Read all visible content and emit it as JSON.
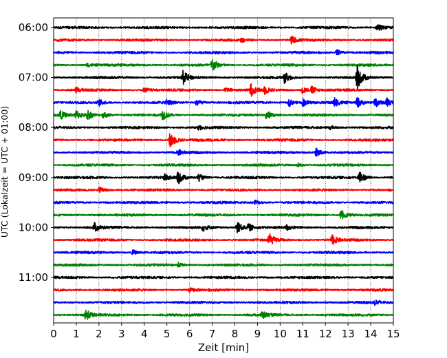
{
  "chart_data": {
    "type": "line",
    "title": "",
    "xlabel": "Zeit  [min]",
    "ylabel": "UTC (Lokalzeit = UTC + 01:00)",
    "xlim": [
      0,
      15
    ],
    "x_ticks": [
      0,
      1,
      2,
      3,
      4,
      5,
      6,
      7,
      8,
      9,
      10,
      11,
      12,
      13,
      14,
      15
    ],
    "x_grid": true,
    "y_tick_labels": [
      "06:00",
      "07:00",
      "08:00",
      "09:00",
      "10:00",
      "11:00"
    ],
    "traces_per_hour": 4,
    "trace_minutes": 15,
    "trace_color_cycle": [
      "#000000",
      "#ff0000",
      "#0000ff",
      "#008000"
    ],
    "traces": [
      {
        "start": "06:00",
        "color": "#000000",
        "events": [
          {
            "t": 14.3,
            "amp": 0.7
          }
        ]
      },
      {
        "start": "06:15",
        "color": "#ff0000",
        "events": [
          {
            "t": 10.5,
            "amp": 0.6
          },
          {
            "t": 8.3,
            "amp": 0.3
          }
        ]
      },
      {
        "start": "06:30",
        "color": "#0000ff",
        "events": [
          {
            "t": 12.5,
            "amp": 0.5
          }
        ]
      },
      {
        "start": "06:45",
        "color": "#008000",
        "events": [
          {
            "t": 7.0,
            "amp": 1.1
          },
          {
            "t": 1.5,
            "amp": 0.3
          }
        ]
      },
      {
        "start": "07:00",
        "color": "#000000",
        "events": [
          {
            "t": 5.7,
            "amp": 1.1
          },
          {
            "t": 10.2,
            "amp": 0.9
          },
          {
            "t": 13.4,
            "amp": 1.9
          }
        ]
      },
      {
        "start": "07:15",
        "color": "#ff0000",
        "events": [
          {
            "t": 8.7,
            "amp": 1.0
          },
          {
            "t": 9.3,
            "amp": 0.6
          },
          {
            "t": 11.0,
            "amp": 0.6
          },
          {
            "t": 11.4,
            "amp": 0.6
          },
          {
            "t": 1.0,
            "amp": 0.4
          },
          {
            "t": 4.0,
            "amp": 0.4
          },
          {
            "t": 7.6,
            "amp": 0.4
          }
        ]
      },
      {
        "start": "07:30",
        "color": "#0000ff",
        "events": [
          {
            "t": 2.0,
            "amp": 0.5
          },
          {
            "t": 5.0,
            "amp": 0.5
          },
          {
            "t": 6.3,
            "amp": 0.6
          },
          {
            "t": 10.4,
            "amp": 0.6
          },
          {
            "t": 11.0,
            "amp": 0.6
          },
          {
            "t": 12.4,
            "amp": 0.7
          },
          {
            "t": 13.4,
            "amp": 0.9
          },
          {
            "t": 14.2,
            "amp": 0.9
          },
          {
            "t": 14.7,
            "amp": 0.7
          }
        ]
      },
      {
        "start": "07:45",
        "color": "#008000",
        "events": [
          {
            "t": 0.3,
            "amp": 0.6
          },
          {
            "t": 1.0,
            "amp": 0.7
          },
          {
            "t": 1.5,
            "amp": 0.8
          },
          {
            "t": 2.2,
            "amp": 0.6
          },
          {
            "t": 4.8,
            "amp": 0.8
          },
          {
            "t": 9.4,
            "amp": 0.8
          }
        ]
      },
      {
        "start": "08:00",
        "color": "#000000",
        "events": [
          {
            "t": 6.4,
            "amp": 0.4
          },
          {
            "t": 12.2,
            "amp": 0.3
          }
        ]
      },
      {
        "start": "08:15",
        "color": "#ff0000",
        "events": [
          {
            "t": 5.15,
            "amp": 1.5
          }
        ]
      },
      {
        "start": "08:30",
        "color": "#0000ff",
        "events": [
          {
            "t": 5.5,
            "amp": 0.4
          },
          {
            "t": 11.6,
            "amp": 0.8
          }
        ]
      },
      {
        "start": "08:45",
        "color": "#008000",
        "events": [
          {
            "t": 10.8,
            "amp": 0.3
          }
        ]
      },
      {
        "start": "09:00",
        "color": "#000000",
        "events": [
          {
            "t": 4.9,
            "amp": 0.5
          },
          {
            "t": 5.5,
            "amp": 1.0
          },
          {
            "t": 6.4,
            "amp": 0.6
          },
          {
            "t": 13.5,
            "amp": 1.2
          }
        ]
      },
      {
        "start": "09:15",
        "color": "#ff0000",
        "events": [
          {
            "t": 2.0,
            "amp": 0.5
          }
        ]
      },
      {
        "start": "09:30",
        "color": "#0000ff",
        "events": [
          {
            "t": 8.9,
            "amp": 0.4
          }
        ]
      },
      {
        "start": "09:45",
        "color": "#008000",
        "events": [
          {
            "t": 12.7,
            "amp": 0.8
          }
        ]
      },
      {
        "start": "10:00",
        "color": "#000000",
        "events": [
          {
            "t": 1.8,
            "amp": 0.7
          },
          {
            "t": 8.1,
            "amp": 1.1
          },
          {
            "t": 8.6,
            "amp": 0.6
          },
          {
            "t": 6.6,
            "amp": 0.5
          },
          {
            "t": 10.3,
            "amp": 0.4
          }
        ]
      },
      {
        "start": "10:15",
        "color": "#ff0000",
        "events": [
          {
            "t": 9.5,
            "amp": 1.1
          },
          {
            "t": 12.3,
            "amp": 0.8
          }
        ]
      },
      {
        "start": "10:30",
        "color": "#0000ff",
        "events": [
          {
            "t": 3.5,
            "amp": 0.4
          }
        ]
      },
      {
        "start": "10:45",
        "color": "#008000",
        "events": [
          {
            "t": 5.5,
            "amp": 0.3
          }
        ]
      },
      {
        "start": "11:00",
        "color": "#000000",
        "events": []
      },
      {
        "start": "11:15",
        "color": "#ff0000",
        "events": [
          {
            "t": 6.0,
            "amp": 0.3
          }
        ]
      },
      {
        "start": "11:30",
        "color": "#0000ff",
        "events": [
          {
            "t": 14.2,
            "amp": 0.4
          }
        ]
      },
      {
        "start": "11:45",
        "color": "#008000",
        "events": [
          {
            "t": 1.4,
            "amp": 1.0
          },
          {
            "t": 9.2,
            "amp": 0.6
          }
        ]
      }
    ]
  }
}
